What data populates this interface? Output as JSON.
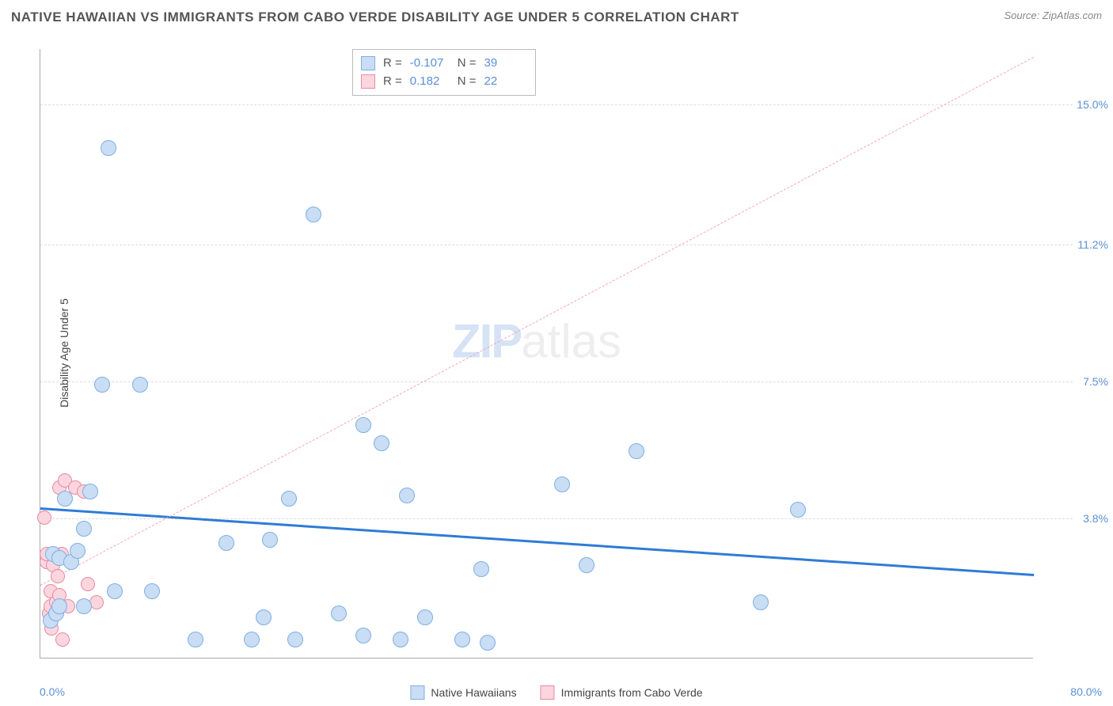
{
  "header": {
    "title": "NATIVE HAWAIIAN VS IMMIGRANTS FROM CABO VERDE DISABILITY AGE UNDER 5 CORRELATION CHART",
    "source": "Source: ZipAtlas.com"
  },
  "chart": {
    "type": "scatter",
    "ylabel": "Disability Age Under 5",
    "background_color": "#ffffff",
    "grid_color": "#dddddd",
    "axis_color": "#aaaaaa",
    "tick_label_color": "#5b8fd6",
    "xlim": [
      0,
      80
    ],
    "ylim": [
      0,
      16.5
    ],
    "xticks": {
      "min": "0.0%",
      "max": "80.0%"
    },
    "yticks": [
      {
        "value": 3.8,
        "label": "3.8%"
      },
      {
        "value": 7.5,
        "label": "7.5%"
      },
      {
        "value": 11.2,
        "label": "11.2%"
      },
      {
        "value": 15.0,
        "label": "15.0%"
      }
    ],
    "watermark": {
      "part1": "ZIP",
      "part2": "atlas",
      "color1": "#d5e3f5",
      "color2": "#eeeeee"
    },
    "series": [
      {
        "name": "Native Hawaiians",
        "fill_color": "#c9ddf4",
        "stroke_color": "#7fafe0",
        "marker_radius": 10,
        "regression": {
          "color": "#2e7cd6",
          "width": 3,
          "dash": "solid",
          "y_at_x0": 4.1,
          "y_at_x80": 2.3
        },
        "points": [
          [
            0.8,
            1.0
          ],
          [
            1.0,
            2.8
          ],
          [
            1.3,
            1.2
          ],
          [
            1.5,
            2.7
          ],
          [
            1.5,
            1.4
          ],
          [
            2.0,
            4.3
          ],
          [
            2.5,
            2.6
          ],
          [
            3.0,
            2.9
          ],
          [
            3.5,
            1.4
          ],
          [
            3.5,
            3.5
          ],
          [
            5.5,
            13.8
          ],
          [
            5.0,
            7.4
          ],
          [
            4.0,
            4.5
          ],
          [
            6.0,
            1.8
          ],
          [
            8.0,
            7.4
          ],
          [
            9.0,
            1.8
          ],
          [
            12.5,
            0.5
          ],
          [
            15.0,
            3.1
          ],
          [
            17.0,
            0.5
          ],
          [
            18.0,
            1.1
          ],
          [
            18.5,
            3.2
          ],
          [
            20.0,
            4.3
          ],
          [
            20.5,
            0.5
          ],
          [
            22.0,
            12.0
          ],
          [
            24.0,
            1.2
          ],
          [
            26.0,
            6.3
          ],
          [
            26.0,
            0.6
          ],
          [
            27.5,
            5.8
          ],
          [
            29.0,
            0.5
          ],
          [
            29.5,
            4.4
          ],
          [
            31.0,
            1.1
          ],
          [
            34.0,
            0.5
          ],
          [
            35.5,
            2.4
          ],
          [
            36.0,
            0.4
          ],
          [
            42.0,
            4.7
          ],
          [
            44.0,
            2.5
          ],
          [
            48.0,
            5.6
          ],
          [
            58.0,
            1.5
          ],
          [
            61.0,
            4.0
          ]
        ]
      },
      {
        "name": "Immigrants from Cabo Verde",
        "fill_color": "#fbd6de",
        "stroke_color": "#e88aa0",
        "marker_radius": 9,
        "regression": {
          "color": "#f4a6b8",
          "width": 1.5,
          "dash": "dashed",
          "y_at_x0": 2.0,
          "y_at_x80": 16.3
        },
        "points": [
          [
            0.3,
            3.8
          ],
          [
            0.5,
            2.6
          ],
          [
            0.5,
            2.8
          ],
          [
            0.7,
            1.2
          ],
          [
            0.8,
            1.4
          ],
          [
            0.8,
            1.8
          ],
          [
            0.9,
            0.8
          ],
          [
            1.0,
            2.5
          ],
          [
            1.1,
            2.8
          ],
          [
            1.2,
            1.2
          ],
          [
            1.3,
            1.5
          ],
          [
            1.4,
            2.2
          ],
          [
            1.5,
            4.6
          ],
          [
            1.5,
            1.7
          ],
          [
            1.7,
            2.8
          ],
          [
            1.8,
            0.5
          ],
          [
            2.0,
            4.8
          ],
          [
            2.2,
            1.4
          ],
          [
            2.8,
            4.6
          ],
          [
            3.5,
            4.5
          ],
          [
            3.8,
            2.0
          ],
          [
            4.5,
            1.5
          ]
        ]
      }
    ],
    "stats": [
      {
        "swatch_fill": "#c9ddf4",
        "swatch_stroke": "#7fafe0",
        "R_label": "R =",
        "R": "-0.107",
        "N_label": "N =",
        "N": "39"
      },
      {
        "swatch_fill": "#fbd6de",
        "swatch_stroke": "#e88aa0",
        "R_label": "R =",
        "R": "0.182",
        "N_label": "N =",
        "N": "22"
      }
    ],
    "legend": [
      {
        "label": "Native Hawaiians",
        "fill": "#c9ddf4",
        "stroke": "#7fafe0"
      },
      {
        "label": "Immigrants from Cabo Verde",
        "fill": "#fbd6de",
        "stroke": "#e88aa0"
      }
    ]
  }
}
